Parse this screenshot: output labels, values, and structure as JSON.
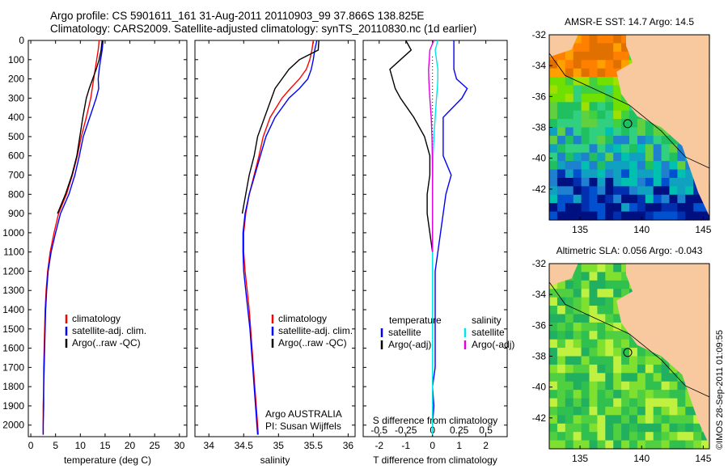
{
  "title_line1": "Argo profile: CS 5901611_161 31-Aug-2011 20110903_99 37.866S 138.825E",
  "title_line2": "Climatology: CARS2009. Satellite-adjusted climatology: synTS_20110830.nc (1d earlier)",
  "stamp": "©IMOS 28-Sep-2011 01:09:55",
  "colors": {
    "climatology": "#ff0000",
    "satellite": "#0000ff",
    "argo": "#000000",
    "sat_salinity": "#00e5e5",
    "argo_adj_salinity": "#e000e0",
    "land": "#f8c89e"
  },
  "chart_data": [
    {
      "type": "line",
      "panel": "temperature",
      "xlabel": "temperature (deg C)",
      "ylabel": "",
      "xlim": [
        -0.5,
        31.5
      ],
      "ylim": [
        2060,
        0
      ],
      "xticks": [
        "0",
        "5",
        "10",
        "15",
        "20",
        "25",
        "30"
      ],
      "yticks": [
        "0",
        "100",
        "200",
        "300",
        "400",
        "500",
        "600",
        "700",
        "800",
        "900",
        "1000",
        "1100",
        "1200",
        "1300",
        "1400",
        "1500",
        "1600",
        "1700",
        "1800",
        "1900",
        "2000"
      ],
      "legend": [
        "climatology",
        "satellite-adj. clim.",
        "Argo(..raw -QC)"
      ],
      "y": [
        0,
        50,
        100,
        150,
        200,
        250,
        300,
        400,
        500,
        600,
        700,
        800,
        900,
        1000,
        1100,
        1200,
        1300,
        1400,
        1500,
        1600,
        1700,
        1800,
        1900,
        2000,
        2050
      ],
      "series": [
        {
          "name": "climatology",
          "color": "#ff0000",
          "x": [
            13.8,
            13.6,
            13.3,
            13.0,
            12.7,
            12.4,
            12.1,
            11.2,
            10.2,
            9.4,
            8.4,
            7.2,
            5.6,
            4.7,
            3.9,
            3.4,
            3.1,
            2.9,
            2.8,
            2.7,
            2.6,
            2.6,
            2.5,
            2.5,
            2.5
          ]
        },
        {
          "name": "satellite-adj. clim.",
          "color": "#0000ff",
          "x": [
            14.6,
            14.4,
            14.1,
            13.8,
            13.6,
            13.7,
            13.2,
            11.9,
            10.6,
            9.8,
            8.9,
            7.7,
            6.0,
            5.0,
            4.1,
            3.5,
            3.2,
            3.0,
            2.9,
            2.8,
            2.7,
            2.6,
            2.6,
            2.5,
            2.5
          ]
        },
        {
          "name": "Argo(..raw -QC)",
          "color": "#000000",
          "x": [
            14.4,
            14.2,
            13.8,
            13.2,
            12.5,
            11.8,
            11.2,
            10.5,
            9.9,
            9.3,
            8.3,
            7.0,
            5.4
          ]
        }
      ]
    },
    {
      "type": "line",
      "panel": "salinity",
      "xlabel": "salinity",
      "xlim": [
        33.8,
        36.1
      ],
      "ylim": [
        2060,
        0
      ],
      "xticks": [
        "34",
        "34.5",
        "35",
        "35.5",
        "36"
      ],
      "legend": [
        "climatology",
        "satellite-adj. clim.",
        "Argo(..raw -QC)"
      ],
      "annotation": [
        "Argo AUSTRALIA",
        "PI: Susan Wijffels"
      ],
      "y": [
        0,
        50,
        100,
        150,
        200,
        250,
        300,
        400,
        500,
        600,
        700,
        800,
        900,
        1000,
        1100,
        1200,
        1300,
        1400,
        1500,
        1600,
        1700,
        1800,
        1900,
        2000,
        2050
      ],
      "series": [
        {
          "name": "climatology",
          "color": "#ff0000",
          "x": [
            35.5,
            35.48,
            35.45,
            35.4,
            35.3,
            35.17,
            35.05,
            34.88,
            34.78,
            34.72,
            34.65,
            34.58,
            34.53,
            34.5,
            34.5,
            34.52,
            34.55,
            34.58,
            34.6,
            34.62,
            34.64,
            34.66,
            34.68,
            34.7,
            34.71
          ]
        },
        {
          "name": "satellite-adj. clim.",
          "color": "#0000ff",
          "x": [
            35.55,
            35.52,
            35.5,
            35.47,
            35.42,
            35.3,
            35.15,
            34.95,
            34.82,
            34.74,
            34.66,
            34.58,
            34.52,
            34.49,
            34.49,
            34.5,
            34.53,
            34.56,
            34.59,
            34.61,
            34.63,
            34.65,
            34.67,
            34.69,
            34.7
          ]
        },
        {
          "name": "Argo(..raw -QC)",
          "color": "#000000",
          "x": [
            35.58,
            35.57,
            35.3,
            35.15,
            35.05,
            34.95,
            34.9,
            34.8,
            34.7,
            34.65,
            34.58,
            34.53,
            34.48
          ]
        }
      ]
    },
    {
      "type": "line",
      "panel": "difference",
      "xlabel": "T difference from climatology",
      "xlabel_top": "S difference from climatology",
      "xlim": [
        -2.6,
        2.8
      ],
      "ylim": [
        2060,
        0
      ],
      "xticks": [
        "-2",
        "-1",
        "0",
        "1",
        "2"
      ],
      "sticks": [
        "-0.5",
        "-0.25",
        "0",
        "0.25",
        "0.5"
      ],
      "legend_headers": [
        "temperature",
        "salinity"
      ],
      "legend": [
        "satellite",
        "Argo(-adj)",
        "satellite",
        "Argo(-adj)"
      ],
      "y": [
        0,
        50,
        100,
        150,
        200,
        250,
        300,
        400,
        500,
        600,
        700,
        800,
        900,
        1000,
        1100,
        1200,
        1300,
        1400,
        1500,
        1600,
        1700,
        1800,
        1900,
        2000,
        2050
      ],
      "series": [
        {
          "name": "satellite",
          "color": "#0000ff",
          "x": [
            0.8,
            0.8,
            0.8,
            0.8,
            0.9,
            1.3,
            1.1,
            0.4,
            0.4,
            0.4,
            0.7,
            0.5,
            0.4,
            0.3,
            0.2,
            0.1,
            0.1,
            0.1,
            0.1,
            0.1,
            0.1,
            0.0,
            0.05,
            0.0,
            0.0
          ]
        },
        {
          "name": "Argo(-adj)",
          "color": "#000000",
          "x": [
            -1.0,
            -0.8,
            -1.2,
            -1.6,
            -1.5,
            -1.4,
            -1.2,
            -0.7,
            -0.3,
            -0.1,
            -0.1,
            -0.2,
            -0.2,
            -0.1,
            0.0
          ]
        },
        {
          "name": "satellite (salinity)",
          "color": "#00e5e5",
          "x": [
            0.2,
            0.1,
            0.15,
            0.2,
            0.2,
            0.18,
            0.15,
            0.1,
            0.05,
            0.02,
            0.01,
            0.0,
            0.0,
            0.0,
            0.0,
            0.0,
            0.0,
            0.0,
            0.0,
            0.0,
            0.0,
            0.0,
            0.0,
            0.0,
            0.0
          ]
        },
        {
          "name": "Argo(-adj) (salinity)",
          "color": "#e000e0",
          "x": [
            0.05,
            -0.1,
            -0.12,
            -0.15,
            -0.14,
            -0.12,
            -0.1,
            -0.05,
            -0.02,
            -0.01,
            0.0,
            0.0,
            0.0,
            0.0,
            0.0
          ]
        }
      ]
    },
    {
      "type": "heatmap",
      "panel": "map",
      "title": "AMSR-E SST: 14.7 Argo: 14.5",
      "xticks": [
        "135",
        "140",
        "145"
      ],
      "yticks": [
        "-32",
        "-34",
        "-36",
        "-38",
        "-40",
        "-42"
      ],
      "xlim": [
        132.5,
        145.5
      ],
      "ylim": [
        -44,
        -32
      ]
    },
    {
      "type": "heatmap",
      "panel": "map",
      "title": "Altimetric SLA: 0.056 Argo: -0.043",
      "xticks": [
        "135",
        "140",
        "145"
      ],
      "yticks": [
        "-32",
        "-34",
        "-36",
        "-38",
        "-40",
        "-42"
      ],
      "xlim": [
        132.5,
        145.5
      ],
      "ylim": [
        -44,
        -32
      ]
    }
  ]
}
